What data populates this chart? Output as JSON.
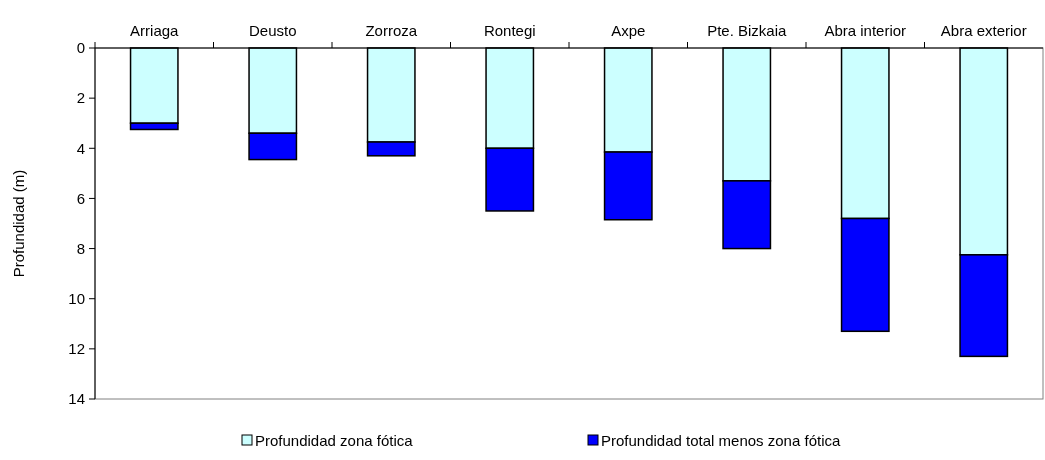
{
  "chart_data": {
    "type": "bar",
    "ylabel": "Profundidad (m)",
    "categories": [
      "Arriaga",
      "Deusto",
      "Zorroza",
      "Rontegi",
      "Axpe",
      "Pte. Bizkaia",
      "Abra interior",
      "Abra exterior"
    ],
    "series": [
      {
        "name": "Profundidad zona fótica",
        "color": "#ccffff",
        "values": [
          3.0,
          3.4,
          3.75,
          4.0,
          4.15,
          5.3,
          6.8,
          8.25
        ]
      },
      {
        "name": "Profundidad total menos zona fótica",
        "color": "#0000ff",
        "values": [
          0.25,
          1.05,
          0.55,
          2.5,
          2.7,
          2.7,
          4.5,
          4.05
        ]
      }
    ],
    "stacked": true,
    "ylim": [
      14,
      0
    ],
    "yticks": [
      0,
      2,
      4,
      6,
      8,
      10,
      12,
      14
    ],
    "grid": false,
    "legend": "bottom"
  }
}
